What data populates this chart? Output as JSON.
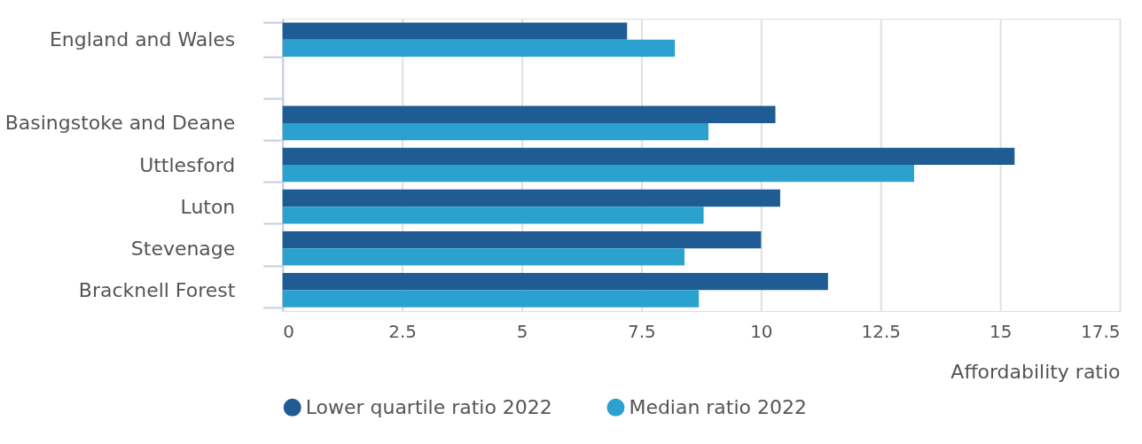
{
  "chart_data": {
    "type": "bar",
    "orientation": "horizontal",
    "xlabel": "Affordability ratio",
    "categories": [
      "England and Wales",
      null,
      "Basingstoke and Deane",
      "Uttlesford",
      "Luton",
      "Stevenage",
      "Bracknell Forest"
    ],
    "series": [
      {
        "name": "Lower quartile ratio 2022",
        "color": "#1f5c94",
        "values": [
          7.2,
          null,
          10.3,
          15.3,
          10.4,
          10.0,
          11.4
        ]
      },
      {
        "name": "Median ratio 2022",
        "color": "#2aa1cf",
        "values": [
          8.2,
          null,
          8.9,
          13.2,
          8.8,
          8.4,
          8.7
        ]
      }
    ],
    "xlim": [
      0,
      17.5
    ],
    "xticks": [
      0,
      2.5,
      5,
      7.5,
      10,
      12.5,
      15,
      17.5
    ],
    "grid": "x",
    "legend": "bottom"
  }
}
